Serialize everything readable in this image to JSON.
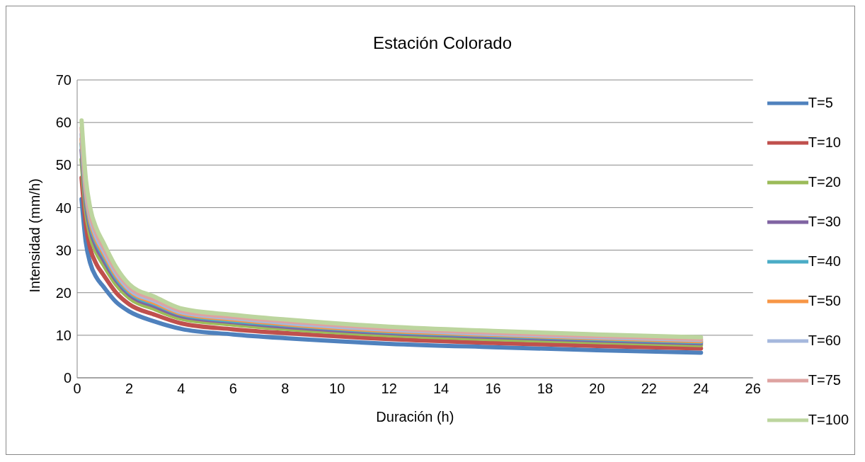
{
  "chart_data": {
    "type": "line",
    "title": "Estación Colorado",
    "xlabel": "Duración (h)",
    "ylabel": "Intensidad (mm/h)",
    "x": [
      0.17,
      0.33,
      0.5,
      0.75,
      1,
      1.5,
      2,
      3,
      4,
      6,
      8,
      12,
      16,
      20,
      24
    ],
    "xlim": [
      0,
      26
    ],
    "xticks": [
      0,
      2,
      4,
      6,
      8,
      10,
      12,
      14,
      16,
      18,
      20,
      22,
      24,
      26
    ],
    "ylim": [
      0,
      70
    ],
    "yticks": [
      0,
      10,
      20,
      30,
      40,
      50,
      60,
      70
    ],
    "grid": "y",
    "legend": "right",
    "marker": "none",
    "line_style": "solid",
    "series": [
      {
        "name": "T=5",
        "color": "#4f81bd",
        "values": [
          42,
          32,
          27,
          23.5,
          21.5,
          17.8,
          15.6,
          13.2,
          11.5,
          10.2,
          9.3,
          8,
          7.2,
          6.5,
          5.9
        ]
      },
      {
        "name": "T=10",
        "color": "#c0504d",
        "values": [
          47.0,
          36.1,
          30.5,
          26.6,
          24.3,
          20.0,
          17.3,
          14.8,
          12.8,
          11.4,
          10.5,
          9.1,
          8.2,
          7.5,
          6.9
        ]
      },
      {
        "name": "T=20",
        "color": "#9bbb59",
        "values": [
          51.3,
          39.5,
          33.5,
          29.3,
          26.7,
          21.9,
          18.8,
          16.1,
          13.9,
          12.5,
          11.5,
          10,
          9.1,
          8.4,
          7.7
        ]
      },
      {
        "name": "T=30",
        "color": "#8064a2",
        "values": [
          53.5,
          41.3,
          35.1,
          30.6,
          27.9,
          22.9,
          19.6,
          16.8,
          14.5,
          13.1,
          12.0,
          10.5,
          9.6,
          8.8,
          8.1
        ]
      },
      {
        "name": "T=40",
        "color": "#4bacc6",
        "values": [
          55.0,
          42.5,
          36.1,
          31.6,
          28.8,
          23.5,
          20.1,
          17.3,
          14.9,
          13.4,
          12.4,
          10.8,
          9.9,
          9.1,
          8.4
        ]
      },
      {
        "name": "T=50",
        "color": "#f79646",
        "values": [
          56.1,
          43.4,
          36.9,
          32.2,
          29.4,
          24.0,
          20.5,
          17.6,
          15.1,
          13.7,
          12.6,
          11.0,
          10.1,
          9.3,
          8.6
        ]
      },
      {
        "name": "T=60",
        "color": "#a5b8dd",
        "values": [
          57.2,
          44.3,
          37.7,
          32.9,
          30.0,
          24.5,
          20.8,
          18.0,
          15.4,
          14.0,
          12.9,
          11.3,
          10.3,
          9.5,
          8.9
        ]
      },
      {
        "name": "T=75",
        "color": "#dea3a1",
        "values": [
          58.7,
          45.5,
          38.7,
          33.9,
          30.9,
          25.2,
          21.4,
          18.4,
          15.8,
          14.3,
          13.3,
          11.6,
          10.6,
          9.8,
          9.1
        ]
      },
      {
        "name": "T=100",
        "color": "#bcd59e",
        "values": [
          60.5,
          47,
          40,
          35,
          31.9,
          26,
          22,
          19,
          16.3,
          14.8,
          13.7,
          12,
          11,
          10.2,
          9.5
        ]
      }
    ]
  }
}
